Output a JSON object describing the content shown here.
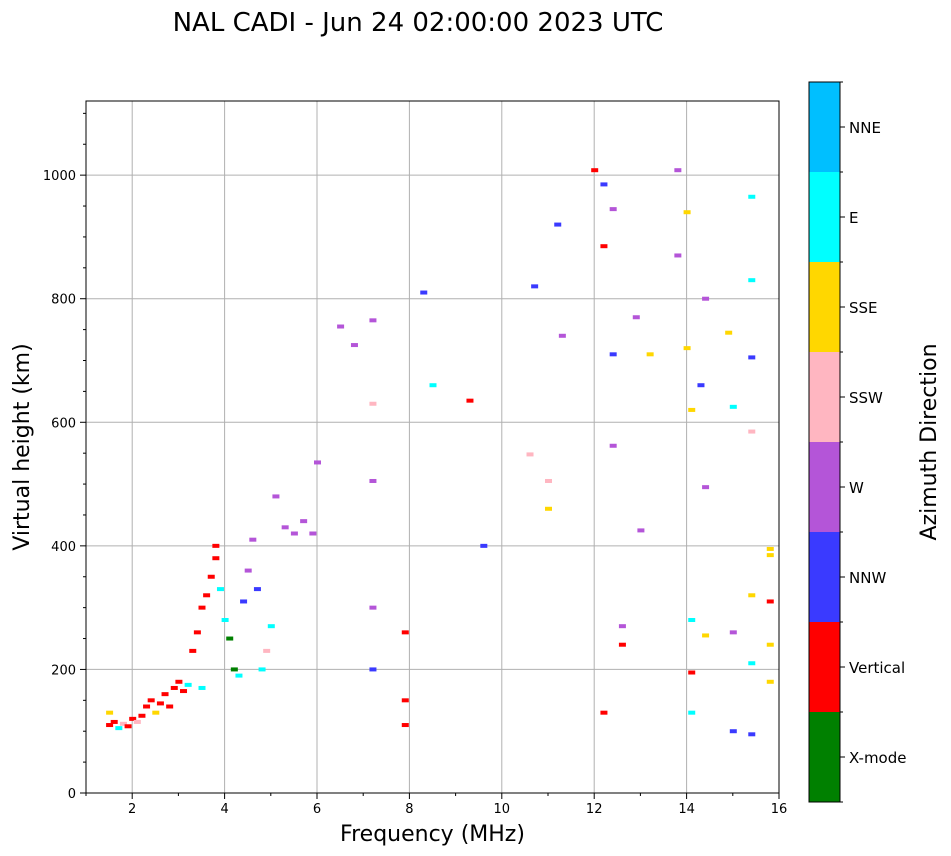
{
  "chart_data": {
    "type": "scatter",
    "title": "NAL CADI - Jun 24 02:00:00 2023 UTC",
    "xlabel": "Frequency (MHz)",
    "ylabel": "Virtual height (km)",
    "xlim": [
      1,
      16
    ],
    "ylim": [
      0,
      1120
    ],
    "xticks": [
      2,
      4,
      6,
      8,
      10,
      12,
      14,
      16
    ],
    "yticks": [
      0,
      200,
      400,
      600,
      800,
      1000
    ],
    "grid": true,
    "colorbar": {
      "title": "Azimuth Direction",
      "categories": [
        {
          "name": "X-mode",
          "color": "#008000"
        },
        {
          "name": "Vertical",
          "color": "#ff0000"
        },
        {
          "name": "NNW",
          "color": "#3a3aff"
        },
        {
          "name": "W",
          "color": "#b455d8"
        },
        {
          "name": "SSW",
          "color": "#ffb6c1"
        },
        {
          "name": "SSE",
          "color": "#ffd700"
        },
        {
          "name": "E",
          "color": "#00ffff"
        },
        {
          "name": "NNE",
          "color": "#00bfff"
        }
      ]
    },
    "points": [
      [
        1.5,
        110,
        "Vertical"
      ],
      [
        1.5,
        130,
        "SSE"
      ],
      [
        1.6,
        115,
        "Vertical"
      ],
      [
        1.7,
        105,
        "E"
      ],
      [
        1.8,
        112,
        "SSW"
      ],
      [
        1.9,
        108,
        "Vertical"
      ],
      [
        2.0,
        120,
        "Vertical"
      ],
      [
        2.1,
        115,
        "SSW"
      ],
      [
        2.2,
        125,
        "Vertical"
      ],
      [
        2.3,
        140,
        "Vertical"
      ],
      [
        2.4,
        150,
        "Vertical"
      ],
      [
        2.5,
        130,
        "SSE"
      ],
      [
        2.6,
        145,
        "Vertical"
      ],
      [
        2.7,
        160,
        "Vertical"
      ],
      [
        2.8,
        140,
        "Vertical"
      ],
      [
        2.9,
        170,
        "Vertical"
      ],
      [
        3.0,
        180,
        "Vertical"
      ],
      [
        3.1,
        165,
        "Vertical"
      ],
      [
        3.2,
        175,
        "E"
      ],
      [
        3.3,
        230,
        "Vertical"
      ],
      [
        3.4,
        260,
        "Vertical"
      ],
      [
        3.5,
        300,
        "Vertical"
      ],
      [
        3.5,
        170,
        "E"
      ],
      [
        3.6,
        320,
        "Vertical"
      ],
      [
        3.7,
        350,
        "Vertical"
      ],
      [
        3.8,
        400,
        "Vertical"
      ],
      [
        3.8,
        380,
        "Vertical"
      ],
      [
        3.9,
        330,
        "E"
      ],
      [
        4.0,
        280,
        "E"
      ],
      [
        4.1,
        250,
        "X-mode"
      ],
      [
        4.2,
        200,
        "X-mode"
      ],
      [
        4.3,
        190,
        "E"
      ],
      [
        4.4,
        310,
        "NNW"
      ],
      [
        4.5,
        360,
        "W"
      ],
      [
        4.6,
        410,
        "W"
      ],
      [
        4.7,
        330,
        "NNW"
      ],
      [
        4.8,
        200,
        "E"
      ],
      [
        4.9,
        230,
        "SSW"
      ],
      [
        5.0,
        270,
        "E"
      ],
      [
        5.1,
        480,
        "W"
      ],
      [
        5.3,
        430,
        "W"
      ],
      [
        5.5,
        420,
        "W"
      ],
      [
        5.7,
        440,
        "W"
      ],
      [
        5.9,
        420,
        "W"
      ],
      [
        6.0,
        535,
        "W"
      ],
      [
        6.5,
        755,
        "W"
      ],
      [
        6.8,
        725,
        "W"
      ],
      [
        7.2,
        765,
        "W"
      ],
      [
        7.2,
        630,
        "SSW"
      ],
      [
        7.2,
        505,
        "W"
      ],
      [
        7.2,
        300,
        "W"
      ],
      [
        7.2,
        200,
        "NNW"
      ],
      [
        7.9,
        150,
        "Vertical"
      ],
      [
        7.9,
        110,
        "Vertical"
      ],
      [
        7.9,
        260,
        "Vertical"
      ],
      [
        8.3,
        810,
        "NNW"
      ],
      [
        8.5,
        660,
        "E"
      ],
      [
        9.3,
        635,
        "Vertical"
      ],
      [
        9.6,
        400,
        "NNW"
      ],
      [
        10.6,
        548,
        "SSW"
      ],
      [
        10.7,
        820,
        "NNW"
      ],
      [
        11.0,
        505,
        "SSW"
      ],
      [
        11.2,
        920,
        "NNW"
      ],
      [
        11.3,
        740,
        "W"
      ],
      [
        11.0,
        460,
        "SSE"
      ],
      [
        12.0,
        1008,
        "Vertical"
      ],
      [
        12.2,
        985,
        "NNW"
      ],
      [
        12.2,
        885,
        "Vertical"
      ],
      [
        12.4,
        945,
        "W"
      ],
      [
        12.4,
        710,
        "NNW"
      ],
      [
        12.4,
        562,
        "W"
      ],
      [
        12.2,
        130,
        "Vertical"
      ],
      [
        12.6,
        270,
        "W"
      ],
      [
        12.6,
        240,
        "Vertical"
      ],
      [
        12.9,
        770,
        "W"
      ],
      [
        13.2,
        710,
        "SSE"
      ],
      [
        13.0,
        425,
        "W"
      ],
      [
        13.8,
        1008,
        "W"
      ],
      [
        13.8,
        870,
        "W"
      ],
      [
        14.0,
        940,
        "SSE"
      ],
      [
        14.0,
        720,
        "SSE"
      ],
      [
        14.1,
        620,
        "SSE"
      ],
      [
        14.1,
        280,
        "E"
      ],
      [
        14.1,
        195,
        "Vertical"
      ],
      [
        14.1,
        130,
        "E"
      ],
      [
        14.3,
        660,
        "NNW"
      ],
      [
        14.4,
        800,
        "W"
      ],
      [
        14.4,
        495,
        "W"
      ],
      [
        14.4,
        255,
        "SSE"
      ],
      [
        14.9,
        745,
        "SSE"
      ],
      [
        15.0,
        625,
        "E"
      ],
      [
        15.0,
        260,
        "W"
      ],
      [
        15.0,
        100,
        "NNW"
      ],
      [
        15.4,
        965,
        "E"
      ],
      [
        15.4,
        830,
        "E"
      ],
      [
        15.4,
        705,
        "NNW"
      ],
      [
        15.4,
        585,
        "SSW"
      ],
      [
        15.4,
        320,
        "SSE"
      ],
      [
        15.4,
        210,
        "E"
      ],
      [
        15.4,
        95,
        "NNW"
      ],
      [
        15.8,
        395,
        "SSE"
      ],
      [
        15.8,
        385,
        "SSE"
      ],
      [
        15.8,
        310,
        "Vertical"
      ],
      [
        15.8,
        240,
        "SSE"
      ],
      [
        15.8,
        180,
        "SSE"
      ]
    ]
  }
}
